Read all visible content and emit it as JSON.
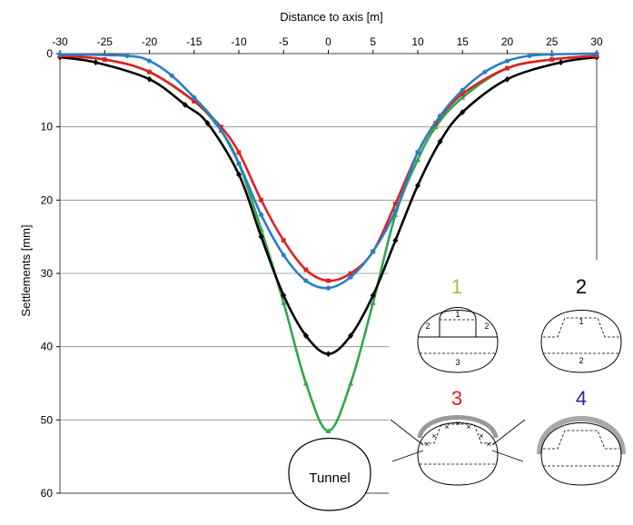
{
  "chart_data": {
    "type": "line",
    "xlabel": "Distance to axis [m]",
    "ylabel": "Settlements [mm]",
    "xlim": [
      -30,
      30
    ],
    "ylim": [
      0,
      60
    ],
    "x_ticks": [
      "-30",
      "-25",
      "-20",
      "-15",
      "-10",
      "-5",
      "0",
      "5",
      "10",
      "15",
      "20",
      "25",
      "30"
    ],
    "y_ticks": [
      "0",
      "10",
      "20",
      "30",
      "40",
      "50",
      "60"
    ],
    "x_axis_position": "top",
    "y_axis_inverted": true,
    "grid": "horizontal",
    "series": [
      {
        "color": "#2ea84a",
        "marker": "triangle",
        "x": [
          -30,
          -25,
          -20,
          -15,
          -12,
          -10,
          -7.5,
          -5,
          -2.5,
          0,
          2.5,
          5,
          7.5,
          10,
          12,
          15,
          20,
          25,
          30
        ],
        "y": [
          0.3,
          0.8,
          2.5,
          6.5,
          10.5,
          15,
          24,
          34,
          45,
          51.5,
          45,
          34,
          22,
          14.5,
          10,
          6,
          2,
          0.8,
          0.3
        ]
      },
      {
        "color": "#000000",
        "marker": "diamond",
        "x": [
          -30,
          -26,
          -20,
          -16,
          -13.5,
          -10,
          -7.5,
          -5,
          -2.5,
          0,
          2.5,
          5,
          7.5,
          10,
          12.5,
          15,
          20,
          26,
          30
        ],
        "y": [
          0.5,
          1.2,
          3.5,
          7,
          9.5,
          16.5,
          25,
          33,
          38.5,
          41,
          38.5,
          33,
          25.5,
          18,
          12,
          8,
          3.5,
          1.2,
          0.5
        ]
      },
      {
        "color": "#e02020",
        "marker": "square",
        "x": [
          -30,
          -25,
          -20,
          -15,
          -12,
          -10,
          -7.5,
          -5,
          -2.5,
          0,
          2.5,
          5,
          7.5,
          10,
          12,
          15,
          20,
          25,
          30
        ],
        "y": [
          0.3,
          0.8,
          2.5,
          6.5,
          10,
          13.5,
          20,
          25.5,
          29.5,
          31,
          30,
          27,
          20.5,
          13.5,
          9.5,
          5.5,
          2,
          0.8,
          0.3
        ]
      },
      {
        "color": "#2a7fc4",
        "marker": "circle",
        "x": [
          -30,
          -22.5,
          -20,
          -17.5,
          -15,
          -12.5,
          -10,
          -7.5,
          -5,
          -2.5,
          0,
          2.5,
          5,
          7.5,
          10,
          12.5,
          15,
          17.5,
          20,
          22.5,
          25,
          30
        ],
        "y": [
          0.1,
          0.3,
          1,
          3,
          6,
          9.5,
          15,
          22,
          27.5,
          31,
          32,
          30.5,
          27,
          21.5,
          13.5,
          8.5,
          5,
          2.5,
          1,
          0.3,
          0.1,
          0
        ]
      }
    ]
  },
  "insets": [
    {
      "number": "1",
      "color": "#b5b54c",
      "labels": [
        "1",
        "2",
        "2",
        "3"
      ]
    },
    {
      "number": "2",
      "color": "#000000",
      "labels": [
        "1",
        "2"
      ]
    },
    {
      "number": "3",
      "color": "#e02020",
      "labels": [
        "×",
        "×",
        "×",
        "×",
        "×",
        "×",
        "×"
      ]
    },
    {
      "number": "4",
      "color": "#2a2a8c",
      "labels": []
    }
  ],
  "tunnel_label": "Tunnel"
}
